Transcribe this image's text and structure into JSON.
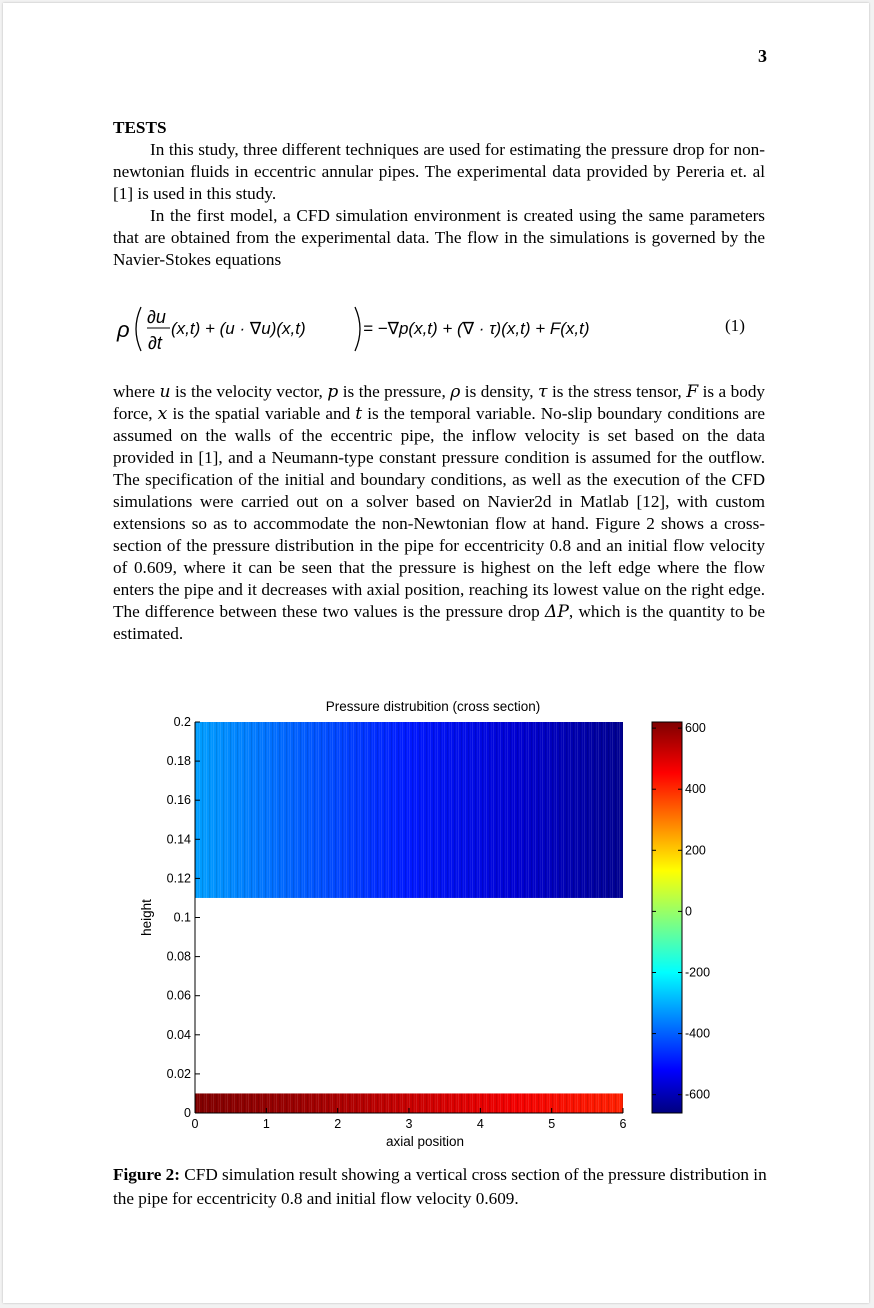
{
  "page": {
    "number": "3"
  },
  "section": {
    "heading": "TESTS",
    "paragraph1": "In this study, three different techniques are used for estimating the pressure drop for non-newtonian fluids in eccentric annular pipes. The experimental data provided by Pereria et. al [1] is used in this study.",
    "paragraph2": "In the first model, a CFD simulation environment is created using the same parameters that are obtained from the experimental data. The flow in the simulations is governed by the Navier-Stokes equations",
    "paragraph3_parts": {
      "w1": "where ",
      "u": "u",
      "w2": " is the velocity vector, ",
      "p": "p",
      "w3": " is the pressure, ",
      "rho": "ρ",
      "w4": " is density, ",
      "tau": "τ",
      "w5": " is the stress tensor, ",
      "F": "F",
      "w6": " is a body force, ",
      "x": "x",
      "w7": " is the spatial variable and ",
      "t": "t",
      "w8": " is the temporal variable. No-slip boundary conditions are assumed on the walls of the eccentric pipe, the inflow velocity is set based on the data provided in [1], and a Neumann-type constant pressure condition is assumed for the outflow. The specification of the initial and boundary conditions, as well as the execution of the CFD simulations were carried out on a solver based on Navier2d in Matlab [12], with custom extensions so as to accommodate the non-Newtonian flow at hand. Figure 2 shows a cross-section of the pressure distribution in the pipe for eccentricity 0.8 and an initial flow velocity of 0.609, where it can be seen that the pressure is highest on the left edge where the flow enters the pipe and it decreases with axial position, reaching its lowest value on the right edge. The difference between these two values is the pressure drop ",
      "dP": "ΔP",
      "w9": ", which is the quantity to be estimated."
    }
  },
  "equation": {
    "lhs_rho": "ρ",
    "du": "∂u",
    "dt": "∂t",
    "lhs_rest": "(x,t) + (u · ∇u)(x,t)",
    "rhs": "= −∇p(x,t) + (∇ · τ)(x,t) + F(x,t)",
    "number": "(1)"
  },
  "chart_data": {
    "type": "heatmap",
    "title": "Pressure distrubition (cross section)",
    "xlabel": "axial position",
    "ylabel": "height",
    "xlim": [
      0,
      6
    ],
    "ylim": [
      0,
      0.2
    ],
    "x_ticks": [
      "0",
      "1",
      "2",
      "3",
      "4",
      "5",
      "6"
    ],
    "y_ticks": [
      "0",
      "0.02",
      "0.04",
      "0.06",
      "0.08",
      "0.1",
      "0.12",
      "0.14",
      "0.16",
      "0.18",
      "0.2"
    ],
    "colorbar": {
      "range": [
        -660,
        620
      ],
      "colormap": "jet",
      "ticks": [
        "600",
        "400",
        "200",
        "0",
        "-200",
        "-400",
        "-600"
      ],
      "tick_values": [
        600,
        400,
        200,
        0,
        -200,
        -400,
        -600
      ]
    },
    "regions": [
      {
        "y_range": [
          0.11,
          0.2
        ],
        "x_range": [
          0,
          6
        ],
        "value_left": -300,
        "value_right": -640
      },
      {
        "y_range": [
          0,
          0.01
        ],
        "x_range": [
          0,
          6
        ],
        "value_left": 640,
        "value_right": 420
      }
    ]
  },
  "caption": {
    "label": "Figure 2:",
    "text": " CFD simulation result showing a vertical cross section of the pressure distribution in the pipe for eccentricity 0.8 and initial flow velocity 0.609."
  }
}
